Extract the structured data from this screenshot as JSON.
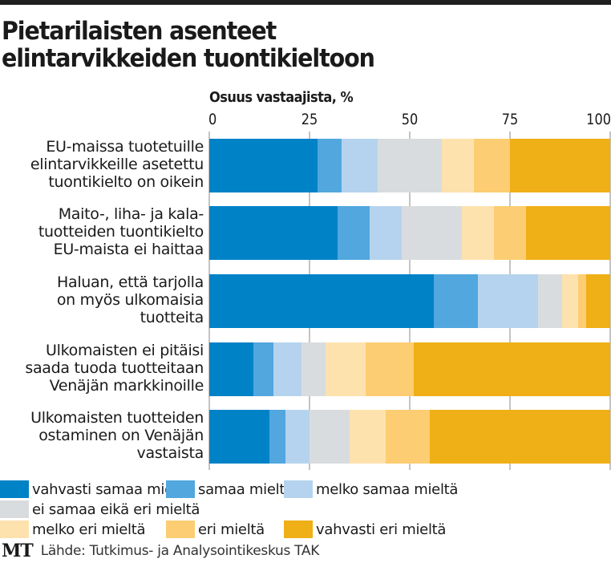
{
  "title_lines": [
    "Pietarilaisten asenteet",
    "elintarvikkeiden tuontikieltoon"
  ],
  "footer": {
    "logo": "MT",
    "source": "Lähde: Tutkimus- ja Analysointikeskus TAK"
  },
  "chart_data": {
    "type": "bar",
    "orientation": "horizontal",
    "stacked": true,
    "title": "Pietarilaisten asenteet elintarvikkeiden tuontikieltoon",
    "xlabel": "Osuus vastaajista, %",
    "ylabel": "",
    "xlim": [
      0,
      100
    ],
    "xticks": [
      "0",
      "25",
      "50",
      "75",
      "100"
    ],
    "xtick_values": [
      0,
      25,
      50,
      75,
      100
    ],
    "grid": false,
    "legend_position": "bottom",
    "categories": [
      [
        "EU-maissa tuotetuille",
        "elintarvikkeille asetettu",
        "tuontikielto on oikein"
      ],
      [
        "Maito-, liha- ja kala-",
        "tuotteiden tuontikielto",
        "EU-maista ei haittaa"
      ],
      [
        "Haluan, että tarjolla",
        "on myös ulkomaisia",
        "tuotteita"
      ],
      [
        "Ulkomaisten ei pitäisi",
        "saada tuoda tuotteitaan",
        "Venäjän markkinoille"
      ],
      [
        "Ulkomaisten tuotteiden",
        "ostaminen on Venäjän",
        "vastaista"
      ]
    ],
    "series": [
      {
        "name": "vahvasti samaa mieltä",
        "color": "#0082C6",
        "values": [
          27,
          32,
          56,
          11,
          15
        ]
      },
      {
        "name": "samaa mieltä",
        "color": "#51A7DE",
        "values": [
          6,
          8,
          11,
          5,
          4
        ]
      },
      {
        "name": "melko samaa mieltä",
        "color": "#B5D3EE",
        "values": [
          9,
          8,
          15,
          7,
          6
        ]
      },
      {
        "name": "ei samaa eikä eri mieltä",
        "color": "#D9DCDE",
        "values": [
          16,
          15,
          6,
          6,
          10
        ]
      },
      {
        "name": "melko eri mieltä",
        "color": "#FDE2AE",
        "values": [
          8,
          8,
          4,
          10,
          9
        ]
      },
      {
        "name": "eri mieltä",
        "color": "#FCCD72",
        "values": [
          9,
          8,
          2,
          12,
          11
        ]
      },
      {
        "name": "vahvasti eri mieltä",
        "color": "#EFAF16",
        "values": [
          25,
          21,
          6,
          49,
          45
        ]
      }
    ]
  }
}
